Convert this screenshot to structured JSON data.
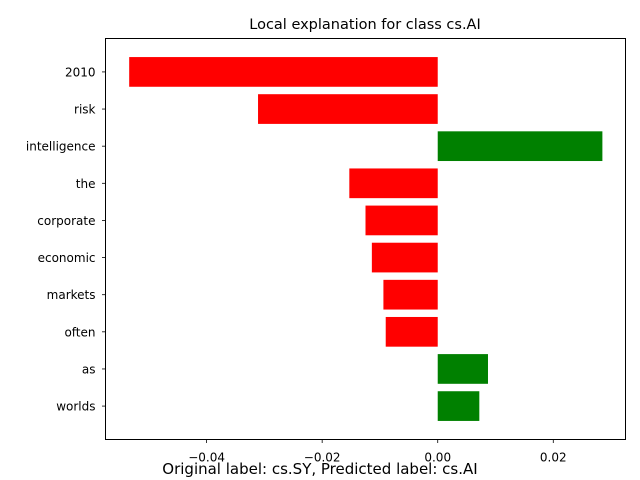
{
  "chart_data": {
    "type": "bar",
    "orientation": "horizontal",
    "title": "Local explanation for class cs.AI",
    "footer_text": "Original label: cs.SY, Predicted label: cs.AI",
    "categories": [
      "2010",
      "risk",
      "intelligence",
      "the",
      "corporate",
      "economic",
      "markets",
      "often",
      "as",
      "worlds"
    ],
    "values": [
      -0.0534,
      -0.0311,
      0.0285,
      -0.0153,
      -0.0125,
      -0.0114,
      -0.0094,
      -0.009,
      0.0087,
      0.0072
    ],
    "xlim": [
      -0.0575,
      0.0325
    ],
    "x_ticks": [
      -0.04,
      -0.02,
      0.0,
      0.02
    ],
    "x_tick_labels": [
      "−0.04",
      "−0.02",
      "0.00",
      "0.02"
    ],
    "xlabel": "",
    "ylabel": "",
    "grid": false,
    "positive_color": "#008000",
    "negative_color": "#ff0000"
  }
}
